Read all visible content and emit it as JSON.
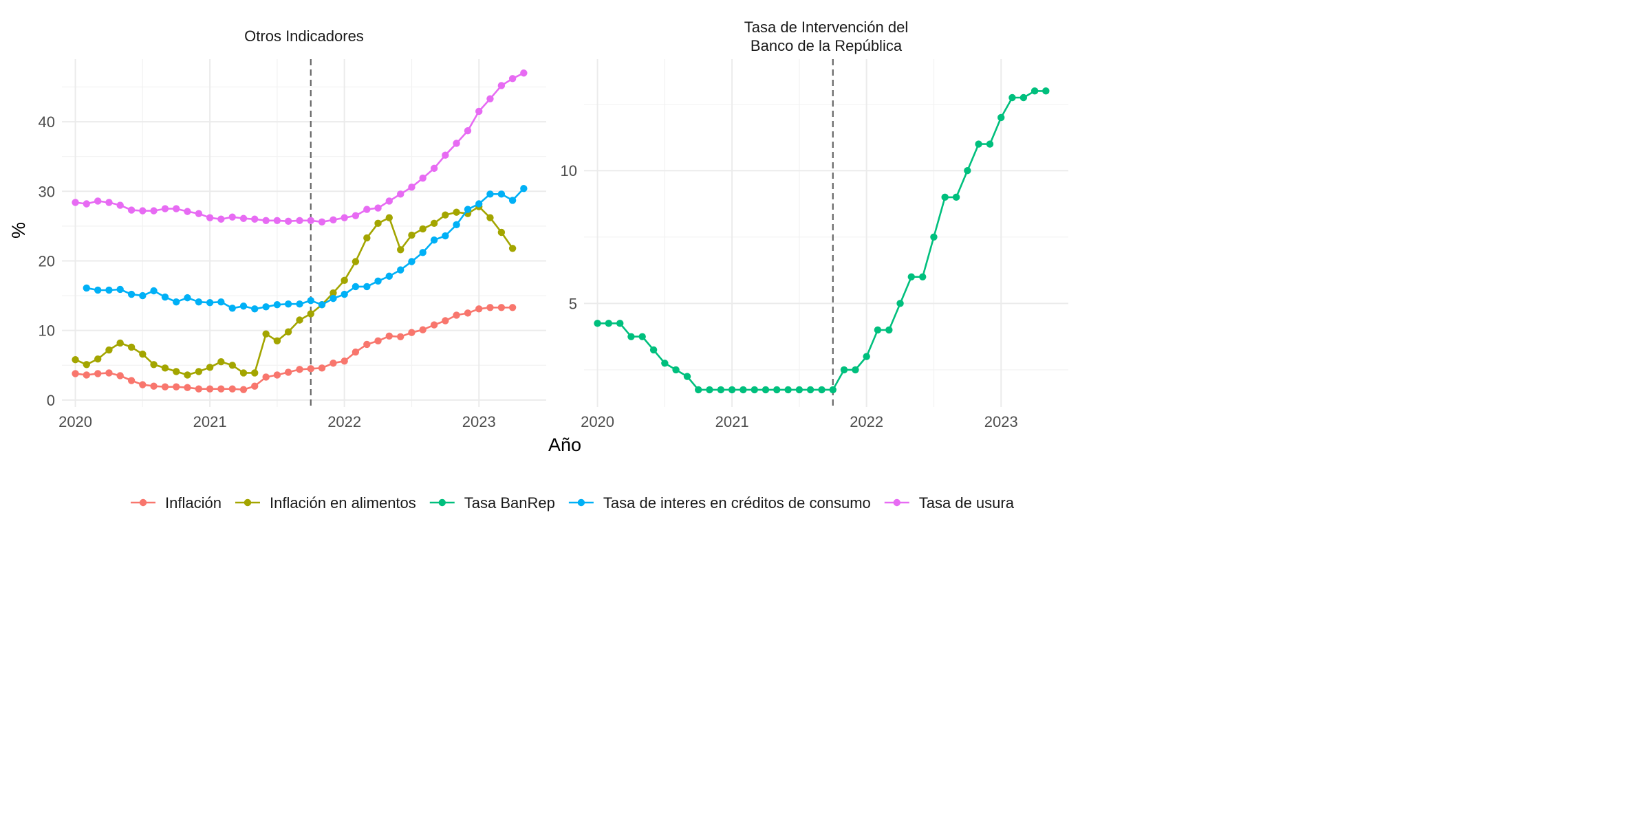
{
  "chart_data": [
    {
      "type": "line",
      "title": "Otros Indicadores",
      "ylabel": "%",
      "xlim": [
        2019.9,
        2023.5
      ],
      "ylim": [
        -1,
        49
      ],
      "yticks": [
        0,
        10,
        20,
        30,
        40
      ],
      "ytick_labels": [
        "0",
        "10",
        "20",
        "30",
        "40"
      ],
      "xticks": [
        2020,
        2021,
        2022,
        2023
      ],
      "xtick_labels": [
        "2020",
        "2021",
        "2022",
        "2023"
      ],
      "vline_x": 2021.75,
      "grid": true,
      "series": [
        {
          "name": "Inflación",
          "x": [
            2020.0,
            2020.083,
            2020.167,
            2020.25,
            2020.333,
            2020.417,
            2020.5,
            2020.583,
            2020.667,
            2020.75,
            2020.833,
            2020.917,
            2021.0,
            2021.083,
            2021.167,
            2021.25,
            2021.333,
            2021.417,
            2021.5,
            2021.583,
            2021.667,
            2021.75,
            2021.833,
            2021.917,
            2022.0,
            2022.083,
            2022.167,
            2022.25,
            2022.333,
            2022.417,
            2022.5,
            2022.583,
            2022.667,
            2022.75,
            2022.833,
            2022.917,
            2023.0,
            2023.083,
            2023.167,
            2023.25
          ],
          "y": [
            3.8,
            3.6,
            3.8,
            3.9,
            3.5,
            2.8,
            2.2,
            2.0,
            1.9,
            1.9,
            1.8,
            1.6,
            1.6,
            1.6,
            1.6,
            1.5,
            2.0,
            3.3,
            3.6,
            4.0,
            4.4,
            4.5,
            4.6,
            5.3,
            5.6,
            6.9,
            8.0,
            8.5,
            9.2,
            9.1,
            9.7,
            10.1,
            10.8,
            11.4,
            12.2,
            12.5,
            13.1,
            13.3,
            13.3,
            13.3
          ]
        },
        {
          "name": "Inflación en alimentos",
          "x": [
            2020.0,
            2020.083,
            2020.167,
            2020.25,
            2020.333,
            2020.417,
            2020.5,
            2020.583,
            2020.667,
            2020.75,
            2020.833,
            2020.917,
            2021.0,
            2021.083,
            2021.167,
            2021.25,
            2021.333,
            2021.417,
            2021.5,
            2021.583,
            2021.667,
            2021.75,
            2021.833,
            2021.917,
            2022.0,
            2022.083,
            2022.167,
            2022.25,
            2022.333,
            2022.417,
            2022.5,
            2022.583,
            2022.667,
            2022.75,
            2022.833,
            2022.917,
            2023.0,
            2023.083,
            2023.167,
            2023.25
          ],
          "y": [
            5.8,
            5.1,
            5.9,
            7.2,
            8.2,
            7.6,
            6.6,
            5.1,
            4.6,
            4.1,
            3.6,
            4.1,
            4.7,
            5.5,
            5.0,
            3.9,
            3.9,
            9.5,
            8.5,
            9.8,
            11.5,
            12.4,
            13.7,
            15.4,
            17.2,
            19.9,
            23.3,
            25.4,
            26.2,
            21.6,
            23.7,
            24.6,
            25.4,
            26.6,
            27.0,
            26.8,
            27.8,
            26.2,
            24.1,
            21.8
          ]
        },
        {
          "name": "Tasa de interes en créditos de consumo",
          "x": [
            2020.083,
            2020.167,
            2020.25,
            2020.333,
            2020.417,
            2020.5,
            2020.583,
            2020.667,
            2020.75,
            2020.833,
            2020.917,
            2021.0,
            2021.083,
            2021.167,
            2021.25,
            2021.333,
            2021.417,
            2021.5,
            2021.583,
            2021.667,
            2021.75,
            2021.833,
            2021.917,
            2022.0,
            2022.083,
            2022.167,
            2022.25,
            2022.333,
            2022.417,
            2022.5,
            2022.583,
            2022.667,
            2022.75,
            2022.833,
            2022.917,
            2023.0,
            2023.083,
            2023.167,
            2023.25,
            2023.333
          ],
          "y": [
            16.1,
            15.8,
            15.8,
            15.9,
            15.2,
            15.0,
            15.7,
            14.8,
            14.1,
            14.7,
            14.1,
            14.0,
            14.1,
            13.2,
            13.5,
            13.1,
            13.4,
            13.7,
            13.8,
            13.8,
            14.3,
            13.7,
            14.6,
            15.2,
            16.3,
            16.3,
            17.1,
            17.8,
            18.7,
            19.9,
            21.2,
            23.0,
            23.6,
            25.2,
            27.4,
            28.2,
            29.6,
            29.6,
            28.7,
            30.4
          ]
        },
        {
          "name": "Tasa de usura",
          "x": [
            2020.0,
            2020.083,
            2020.167,
            2020.25,
            2020.333,
            2020.417,
            2020.5,
            2020.583,
            2020.667,
            2020.75,
            2020.833,
            2020.917,
            2021.0,
            2021.083,
            2021.167,
            2021.25,
            2021.333,
            2021.417,
            2021.5,
            2021.583,
            2021.667,
            2021.75,
            2021.833,
            2021.917,
            2022.0,
            2022.083,
            2022.167,
            2022.25,
            2022.333,
            2022.417,
            2022.5,
            2022.583,
            2022.667,
            2022.75,
            2022.833,
            2022.917,
            2023.0,
            2023.083,
            2023.167,
            2023.25,
            2023.333
          ],
          "y": [
            28.4,
            28.2,
            28.6,
            28.4,
            28.0,
            27.3,
            27.2,
            27.2,
            27.5,
            27.5,
            27.1,
            26.8,
            26.2,
            26.0,
            26.3,
            26.1,
            26.0,
            25.8,
            25.8,
            25.7,
            25.8,
            25.8,
            25.6,
            25.9,
            26.2,
            26.5,
            27.4,
            27.6,
            28.6,
            29.6,
            30.6,
            31.9,
            33.3,
            35.2,
            36.9,
            38.7,
            41.5,
            43.3,
            45.2,
            46.2,
            47.0
          ]
        }
      ]
    },
    {
      "type": "line",
      "title": "Tasa de Intervención del Banco de la República",
      "title_lines": [
        "Tasa de Intervención del",
        "Banco de la República"
      ],
      "xlim": [
        2019.9,
        2023.5
      ],
      "ylim": [
        1.1,
        14.2
      ],
      "yticks": [
        5,
        10
      ],
      "ytick_labels": [
        "5",
        "10"
      ],
      "yminor": [
        2.5,
        7.5,
        12.5
      ],
      "xticks": [
        2020,
        2021,
        2022,
        2023
      ],
      "xtick_labels": [
        "2020",
        "2021",
        "2022",
        "2023"
      ],
      "vline_x": 2021.75,
      "grid": true,
      "series": [
        {
          "name": "Tasa BanRep",
          "x": [
            2020.0,
            2020.083,
            2020.167,
            2020.25,
            2020.333,
            2020.417,
            2020.5,
            2020.583,
            2020.667,
            2020.75,
            2020.833,
            2020.917,
            2021.0,
            2021.083,
            2021.167,
            2021.25,
            2021.333,
            2021.417,
            2021.5,
            2021.583,
            2021.667,
            2021.75,
            2021.833,
            2021.917,
            2022.0,
            2022.083,
            2022.167,
            2022.25,
            2022.333,
            2022.417,
            2022.5,
            2022.583,
            2022.667,
            2022.75,
            2022.833,
            2022.917,
            2023.0,
            2023.083,
            2023.167,
            2023.25,
            2023.333
          ],
          "y": [
            4.25,
            4.25,
            4.25,
            3.75,
            3.75,
            3.25,
            2.75,
            2.5,
            2.25,
            1.75,
            1.75,
            1.75,
            1.75,
            1.75,
            1.75,
            1.75,
            1.75,
            1.75,
            1.75,
            1.75,
            1.75,
            1.75,
            2.5,
            2.5,
            3.0,
            4.0,
            4.0,
            5.0,
            6.0,
            6.0,
            7.5,
            9.0,
            9.0,
            10.0,
            11.0,
            11.0,
            12.0,
            12.75,
            12.75,
            13.0,
            13.0
          ]
        }
      ]
    }
  ],
  "colors": {
    "Inflación": "#F8766D",
    "Inflación en alimentos": "#A3A500",
    "Tasa BanRep": "#00BF7D",
    "Tasa de interes en créditos de consumo": "#00B0F6",
    "Tasa de usura": "#E76BF3"
  },
  "axis": {
    "xlabel": "Año",
    "ylabel": "%"
  },
  "legend": {
    "position": "bottom",
    "items": [
      "Inflación",
      "Inflación en alimentos",
      "Tasa BanRep",
      "Tasa de interes en créditos de consumo",
      "Tasa de usura"
    ]
  }
}
